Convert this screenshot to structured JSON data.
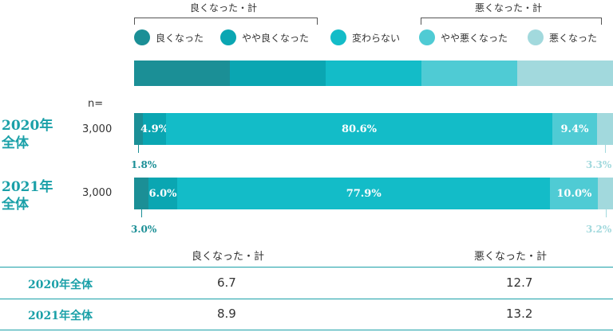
{
  "brackets": {
    "good_total": "良くなった・計",
    "bad_total": "悪くなった・計"
  },
  "legend": [
    {
      "label": "良くなった",
      "color": "#1b8f96"
    },
    {
      "label": "やや良くなった",
      "color": "#0aa6b2"
    },
    {
      "label": "変わらない",
      "color": "#13bcc8"
    },
    {
      "label": "やや悪くなった",
      "color": "#4fcbd4"
    },
    {
      "label": "悪くなった",
      "color": "#a2d9dd"
    }
  ],
  "n_header": "n=",
  "rows": [
    {
      "title_line1": "2020年",
      "title_line2": "全体",
      "n": "3,000"
    },
    {
      "title_line1": "2021年",
      "title_line2": "全体",
      "n": "3,000"
    }
  ],
  "chart_data": {
    "type": "bar",
    "orientation": "horizontal-stacked-100",
    "categories": [
      "2020年全体",
      "2021年全体"
    ],
    "series": [
      {
        "name": "良くなった",
        "values": [
          1.8,
          3.0
        ],
        "labels": [
          "1.8%",
          "3.0%"
        ]
      },
      {
        "name": "やや良くなった",
        "values": [
          4.9,
          6.0
        ],
        "labels": [
          "4.9%",
          "6.0%"
        ]
      },
      {
        "name": "変わらない",
        "values": [
          80.6,
          77.9
        ],
        "labels": [
          "80.6%",
          "77.9%"
        ]
      },
      {
        "name": "やや悪くなった",
        "values": [
          9.4,
          10.0
        ],
        "labels": [
          "9.4%",
          "10.0%"
        ]
      },
      {
        "name": "悪くなった",
        "values": [
          3.3,
          3.2
        ],
        "labels": [
          "3.3%",
          "3.2%"
        ]
      }
    ],
    "xlim": [
      0,
      100
    ],
    "legend_position": "top"
  },
  "summary": {
    "col_good": "良くなった・計",
    "col_bad": "悪くなった・計",
    "rows": [
      {
        "label": "2020年全体",
        "good": "6.7",
        "bad": "12.7"
      },
      {
        "label": "2021年全体",
        "good": "8.9",
        "bad": "13.2"
      }
    ]
  }
}
